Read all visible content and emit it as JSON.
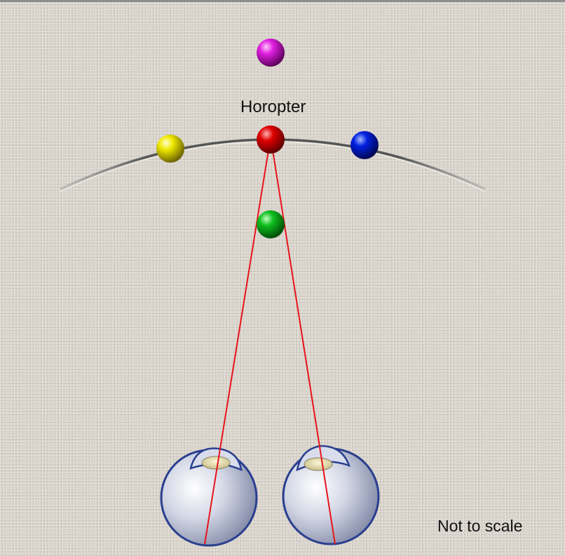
{
  "labels": {
    "horopter": "Horopter",
    "scale_note": "Not to scale"
  },
  "colors": {
    "sight_lines": "#e8141b",
    "horopter_arc": "#5a5a5a",
    "balls": {
      "magenta": "#d010d0",
      "red": "#d00000",
      "yellow": "#e8e000",
      "blue": "#0010d8",
      "green": "#00b020"
    },
    "eye_outline": "#2a3f8f"
  }
}
